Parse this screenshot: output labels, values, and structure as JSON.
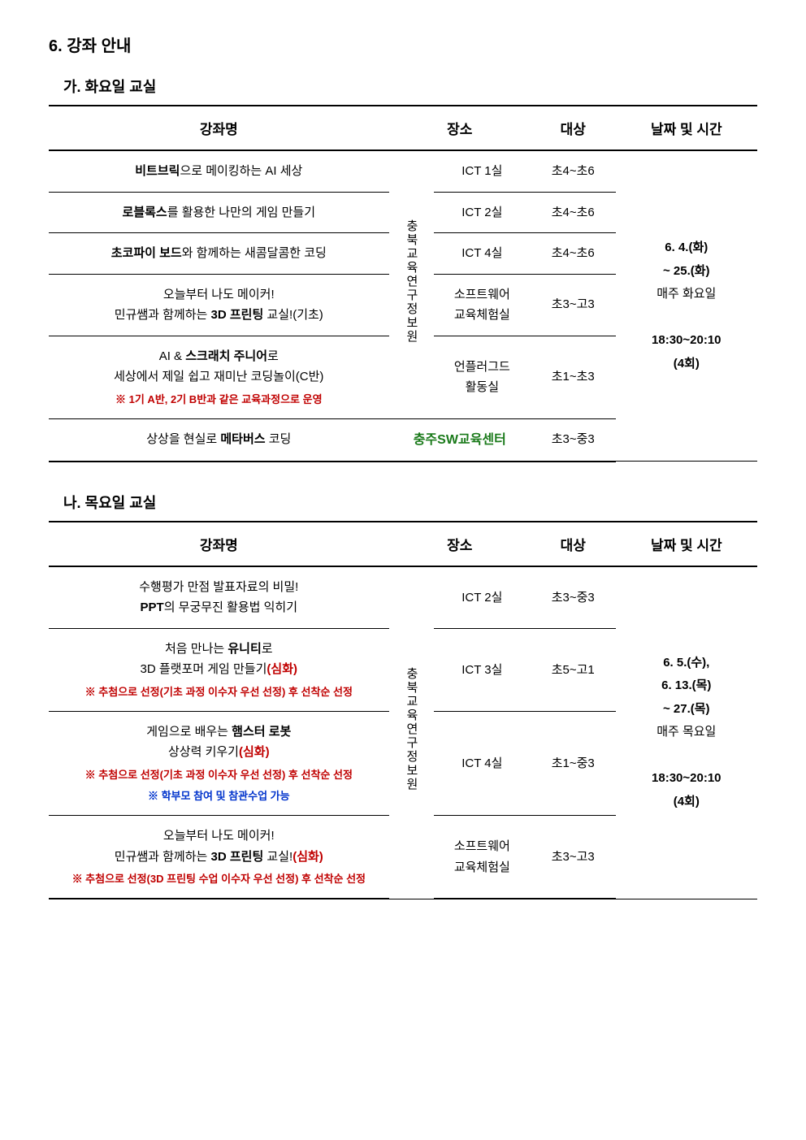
{
  "section": {
    "title": "6. 강좌 안내",
    "subA": "가. 화요일 교실",
    "subB": "나. 목요일 교실"
  },
  "headers": {
    "course": "강좌명",
    "place": "장소",
    "target": "대상",
    "datetime": "날짜 및 시간"
  },
  "tuesday": {
    "location_vertical": "충북교육연구정보원",
    "rows": [
      {
        "course_pre": "",
        "course_bold": "비트브릭",
        "course_post": "으로 메이킹하는 AI 세상",
        "note_red": "",
        "note_blue": "",
        "room": "ICT 1실",
        "target": "초4~초6"
      },
      {
        "course_pre": "",
        "course_bold": "로블록스",
        "course_post": "를 활용한 나만의 게임 만들기",
        "note_red": "",
        "note_blue": "",
        "room": "ICT 2실",
        "target": "초4~초6"
      },
      {
        "course_pre": "",
        "course_bold": "초코파이 보드",
        "course_post": "와 함께하는 새콤달콤한 코딩",
        "note_red": "",
        "note_blue": "",
        "room": "ICT 4실",
        "target": "초4~초6"
      },
      {
        "course_pre": "오늘부터 나도 메이커!\n민규쌤과 함께하는 ",
        "course_bold": "3D 프린팅",
        "course_post": " 교실!(기초)",
        "note_red": "",
        "note_blue": "",
        "room": "소프트웨어\n교육체험실",
        "target": "초3~고3"
      },
      {
        "course_pre": "AI & ",
        "course_bold": "스크래치 주니어",
        "course_post": "로\n세상에서 제일 쉽고 재미난 코딩놀이(C반)",
        "note_red": "※ 1기 A반, 2기 B반과 같은 교육과정으로 운영",
        "note_blue": "",
        "room": "언플러그드\n활동실",
        "target": "초1~초3"
      },
      {
        "course_pre": "상상을 현실로 ",
        "course_bold": "메타버스",
        "course_post": " 코딩",
        "note_red": "",
        "note_blue": "",
        "room": "충주SW교육센터",
        "is_center": true,
        "target": "초3~중3"
      }
    ],
    "datetime": {
      "line1": "6. 4.(화)",
      "line2": "~ 25.(화)",
      "line3": "매주 화요일",
      "line4": "18:30~20:10",
      "line5": "(4회)"
    }
  },
  "thursday": {
    "location_vertical": "충북교육연구정보원",
    "rows": [
      {
        "course_pre": "수행평가 만점 발표자료의 비밀!\n",
        "course_bold": "PPT",
        "course_post": "의 무궁무진 활용법 익히기",
        "note_red": "",
        "note_blue": "",
        "room": "ICT 2실",
        "target": "초3~중3"
      },
      {
        "course_pre": "처음 만나는 ",
        "course_bold": "유니티",
        "course_post": "로\n3D 플랫포머 게임 만들기",
        "accent_red": "(심화)",
        "note_red": "※ 추첨으로 선정(기초 과정 이수자 우선 선정) 후 선착순 선정",
        "note_blue": "",
        "room": "ICT 3실",
        "target": "초5~고1"
      },
      {
        "course_pre": "게임으로 배우는 ",
        "course_bold": "햄스터 로봇",
        "course_post": "\n상상력 키우기",
        "accent_red": "(심화)",
        "note_red": "※ 추첨으로 선정(기초 과정 이수자 우선 선정) 후 선착순 선정",
        "note_blue": "※ 학부모 참여 및 참관수업 가능",
        "room": "ICT 4실",
        "target": "초1~중3"
      },
      {
        "course_pre": "오늘부터 나도 메이커!\n민규쌤과 함께하는 ",
        "course_bold": "3D 프린팅",
        "course_post": " 교실!",
        "accent_red": "(심화)",
        "note_red": "※ 추첨으로 선정(3D 프린팅 수업 이수자 우선 선정) 후 선착순 선정",
        "note_blue": "",
        "room": "소프트웨어\n교육체험실",
        "target": "초3~고3"
      }
    ],
    "datetime": {
      "line1": "6. 5.(수),",
      "line2": "6. 13.(목)",
      "line3": "~ 27.(목)",
      "line4": "매주 목요일",
      "line5": "18:30~20:10",
      "line6": "(4회)"
    }
  }
}
